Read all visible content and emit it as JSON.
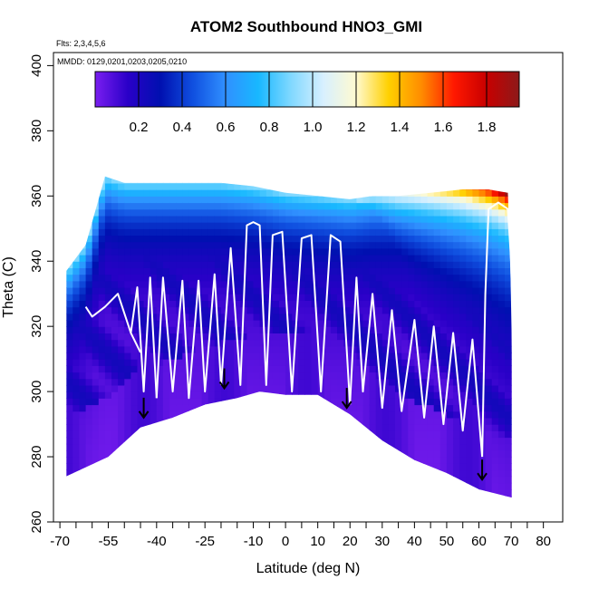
{
  "chart_data": {
    "type": "heatmap",
    "title": "ATOM2 Southbound HNO3_GMI",
    "flights_note": "Flts: 2,3,4,5,6",
    "dates_note": "MMDD: 0129,0201,0203,0205,0210",
    "xlabel": "Latitude (deg N)",
    "ylabel": "Theta (C)",
    "xlim": [
      -72,
      86
    ],
    "ylim": [
      260,
      404
    ],
    "x_ticks": [
      -70,
      -55,
      -40,
      -25,
      -10,
      0,
      10,
      20,
      30,
      40,
      50,
      60,
      70,
      80
    ],
    "x_minor_ticks": [
      -65,
      -60,
      -50,
      -45,
      -35,
      -30,
      -20,
      -15,
      -5,
      5,
      15,
      25,
      35,
      45,
      55,
      65,
      75
    ],
    "y_ticks": [
      260,
      280,
      300,
      320,
      340,
      360,
      380,
      400
    ],
    "colorbar": {
      "range": [
        0,
        1.95
      ],
      "tick_values": [
        0.2,
        0.4,
        0.6,
        0.8,
        1.0,
        1.2,
        1.4,
        1.6,
        1.8
      ],
      "tick_labels": [
        "0.2",
        "0.4",
        "0.6",
        "0.8",
        "1.0",
        "1.2",
        "1.4",
        "1.6",
        "1.8"
      ],
      "colors": [
        "#7a1ef0",
        "#2a00c8",
        "#0010b0",
        "#1050e0",
        "#3090ff",
        "#18b8ff",
        "#80d8ff",
        "#d8f0ff",
        "#fffad0",
        "#ffd000",
        "#ff8c00",
        "#ff1800",
        "#c80000",
        "#8c1a1a"
      ]
    },
    "lower_boundary": [
      [
        -68,
        274
      ],
      [
        -55,
        280
      ],
      [
        -45,
        289
      ],
      [
        -35,
        292
      ],
      [
        -25,
        296
      ],
      [
        -15,
        298
      ],
      [
        -8,
        300
      ],
      [
        0,
        299
      ],
      [
        10,
        299
      ],
      [
        20,
        293
      ],
      [
        30,
        285
      ],
      [
        40,
        279
      ],
      [
        50,
        275
      ],
      [
        60,
        270
      ],
      [
        72,
        267
      ]
    ],
    "upper_boundary": [
      [
        -68,
        337
      ],
      [
        -62,
        345
      ],
      [
        -56,
        366
      ],
      [
        -53,
        365
      ],
      [
        -50,
        364
      ],
      [
        -40,
        364
      ],
      [
        -30,
        364
      ],
      [
        -20,
        364
      ],
      [
        -10,
        363
      ],
      [
        0,
        361
      ],
      [
        10,
        360
      ],
      [
        20,
        359
      ],
      [
        27,
        360
      ],
      [
        35,
        360
      ],
      [
        45,
        361
      ],
      [
        55,
        362
      ],
      [
        63,
        362
      ],
      [
        69,
        361
      ]
    ],
    "arrows": [
      [
        -44,
        292
      ],
      [
        -19,
        301
      ],
      [
        19,
        295
      ],
      [
        61,
        273
      ]
    ],
    "white_tracks": [
      [
        [
          -62,
          326
        ],
        [
          -60,
          323
        ],
        [
          -56,
          326
        ],
        [
          -52,
          330
        ],
        [
          -48,
          318
        ],
        [
          -45,
          312
        ]
      ],
      [
        [
          -48,
          318
        ],
        [
          -46,
          332
        ],
        [
          -44,
          300
        ],
        [
          -42,
          335
        ],
        [
          -40,
          298
        ]
      ],
      [
        [
          -40,
          298
        ],
        [
          -38,
          335
        ],
        [
          -35,
          300
        ],
        [
          -32,
          334
        ],
        [
          -30,
          298
        ],
        [
          -27,
          334
        ],
        [
          -25,
          300
        ],
        [
          -22,
          336
        ],
        [
          -20,
          302
        ]
      ],
      [
        [
          -20,
          302
        ],
        [
          -17,
          344
        ],
        [
          -14,
          302
        ],
        [
          -12,
          351
        ],
        [
          -10,
          352
        ],
        [
          -8,
          351
        ],
        [
          -6,
          302
        ],
        [
          -4,
          348
        ],
        [
          -1,
          349
        ],
        [
          2,
          300
        ],
        [
          5,
          347
        ],
        [
          8,
          348
        ],
        [
          11,
          300
        ],
        [
          14,
          348
        ],
        [
          17,
          346
        ],
        [
          20,
          296
        ]
      ],
      [
        [
          20,
          296
        ],
        [
          22,
          335
        ],
        [
          24,
          300
        ],
        [
          27,
          330
        ],
        [
          30,
          295
        ],
        [
          33,
          325
        ],
        [
          36,
          294
        ],
        [
          40,
          322
        ],
        [
          43,
          292
        ],
        [
          46,
          320
        ],
        [
          49,
          290
        ],
        [
          52,
          318
        ],
        [
          55,
          288
        ],
        [
          58,
          316
        ],
        [
          61,
          280
        ]
      ],
      [
        [
          61,
          280
        ],
        [
          62,
          330
        ],
        [
          63,
          356
        ],
        [
          66,
          358
        ],
        [
          69,
          356
        ],
        [
          70,
          340
        ],
        [
          71,
          288
        ]
      ]
    ]
  }
}
